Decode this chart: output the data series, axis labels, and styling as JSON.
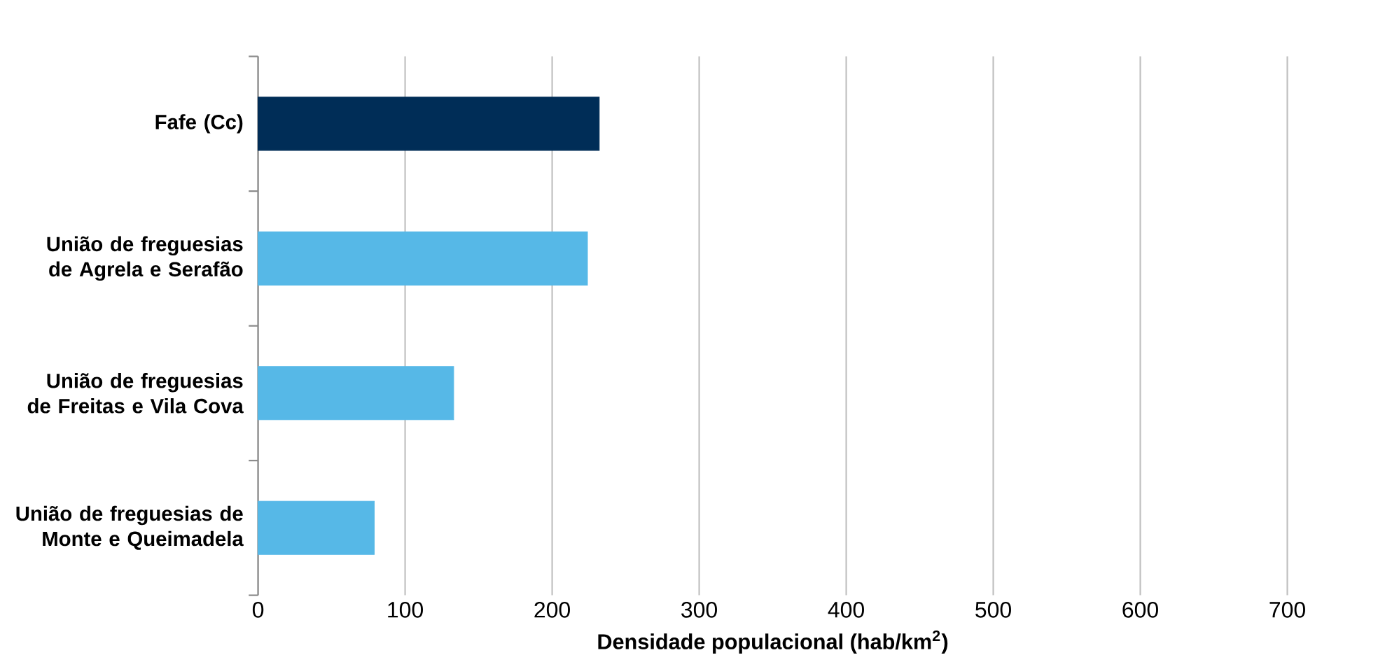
{
  "chart_data": {
    "type": "bar",
    "orientation": "horizontal",
    "categories": [
      "Fafe (Cc)",
      "União de freguesias de Agrela e Serafão",
      "União de freguesias de Freitas e Vila Cova",
      "União de freguesias de Monte e Queimadela"
    ],
    "values": [
      232,
      224,
      133,
      79
    ],
    "colors": [
      "#002d57",
      "#56b8e7",
      "#56b8e7",
      "#56b8e7"
    ],
    "xlim": [
      0,
      700
    ],
    "xticks": [
      0,
      100,
      200,
      300,
      400,
      500,
      600,
      700
    ],
    "xlabel": "Densidade populacional (hab/km$^{2}$)",
    "grid": "x"
  }
}
